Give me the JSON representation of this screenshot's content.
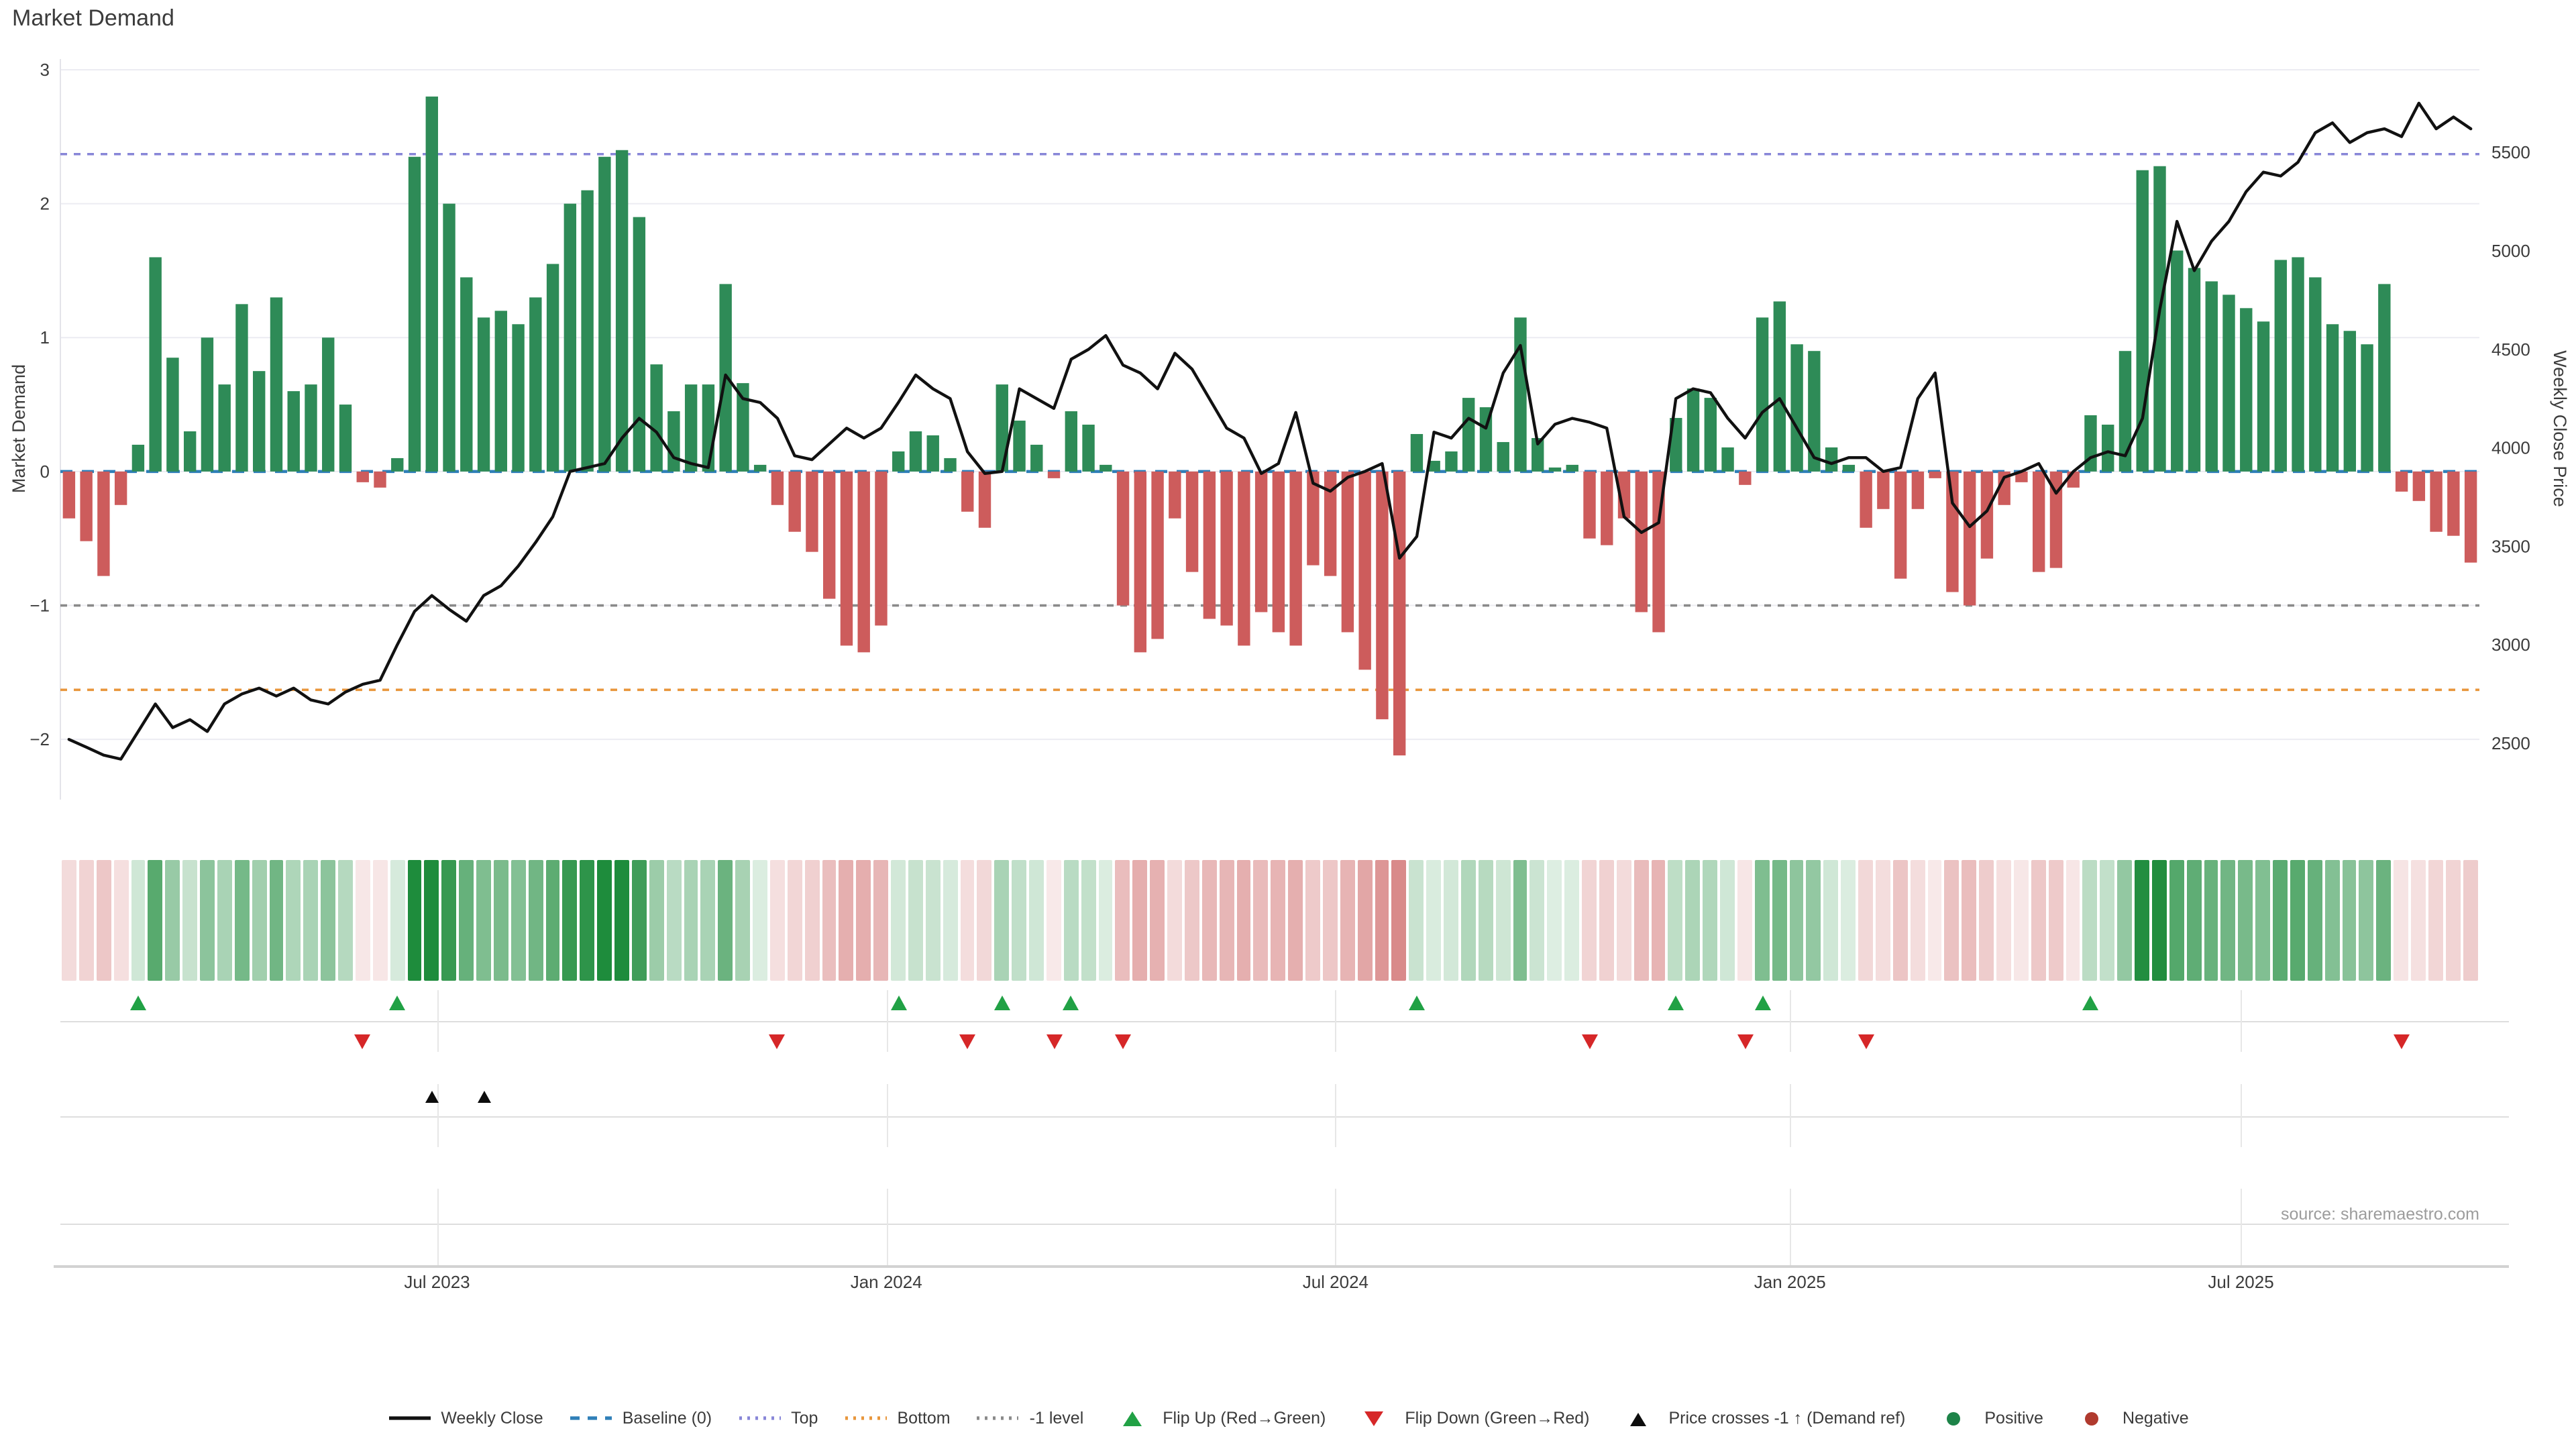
{
  "title": "Market Demand",
  "source_note": "source: sharemaestro.com",
  "axes": {
    "left": {
      "title": "Market Demand",
      "ticks": [
        3,
        2,
        1,
        0,
        -1,
        -2
      ],
      "range": [
        -2.45,
        3.08
      ]
    },
    "right": {
      "title": "Weekly Close Price",
      "ticks": [
        5500,
        5000,
        4500,
        4000,
        3500,
        3000,
        2500
      ],
      "range": [
        2214,
        5974
      ]
    },
    "x": {
      "tick_labels": [
        "Jul 2023",
        "Jan 2024",
        "Jul 2024",
        "Jan 2025",
        "Jul 2025"
      ],
      "tick_weeks": [
        21.3,
        47.3,
        73.3,
        99.6,
        125.7
      ]
    }
  },
  "colors": {
    "bar_positive": "#2E8B57",
    "bar_negative": "#CD5C5C",
    "price_line": "#111111",
    "baseline": "#2f7fb8",
    "top_line": "#8886d8",
    "bottom_line": "#e8963c",
    "minus1_line": "#8a8a8a",
    "flip_up": "#21a145",
    "flip_down": "#d62728",
    "price_cross": "#0d0d0d",
    "positive_dot": "#1d8348",
    "negative_dot": "#b03a2e",
    "grid": "#ececf2"
  },
  "chart_data": {
    "type": "combo",
    "x_unit": "week",
    "weeks_count": 140,
    "title": "Market Demand",
    "ylabel_left": "Market Demand",
    "ylabel_right": "Weekly Close Price",
    "ylim_left": [
      -2.45,
      3.08
    ],
    "ylim_right": [
      2214,
      5974
    ],
    "thresholds": {
      "baseline": 0,
      "top": 2.37,
      "bottom": -1.63,
      "minus1": -1.0
    },
    "series": [
      {
        "name": "Market Demand",
        "type": "bar",
        "axis": "left",
        "values": [
          -0.35,
          -0.52,
          -0.78,
          -0.25,
          0.2,
          1.6,
          0.85,
          0.3,
          1.0,
          0.65,
          1.25,
          0.75,
          1.3,
          0.6,
          0.65,
          1.0,
          0.5,
          -0.08,
          -0.12,
          0.1,
          2.35,
          2.8,
          2.0,
          1.45,
          1.15,
          1.2,
          1.1,
          1.3,
          1.55,
          2.0,
          2.1,
          2.35,
          2.4,
          1.9,
          0.8,
          0.45,
          0.65,
          0.65,
          1.4,
          0.66,
          0.05,
          -0.25,
          -0.45,
          -0.6,
          -0.95,
          -1.3,
          -1.35,
          -1.15,
          0.15,
          0.3,
          0.27,
          0.1,
          -0.3,
          -0.42,
          0.65,
          0.38,
          0.2,
          -0.05,
          0.45,
          0.35,
          0.05,
          -1.0,
          -1.35,
          -1.25,
          -0.35,
          -0.75,
          -1.1,
          -1.15,
          -1.3,
          -1.05,
          -1.2,
          -1.3,
          -0.7,
          -0.78,
          -1.2,
          -1.48,
          -1.85,
          -2.12,
          0.28,
          0.08,
          0.15,
          0.55,
          0.48,
          0.22,
          1.15,
          0.25,
          0.03,
          0.05,
          -0.5,
          -0.55,
          -0.35,
          -1.05,
          -1.2,
          0.4,
          0.62,
          0.55,
          0.18,
          -0.1,
          1.15,
          1.27,
          0.95,
          0.9,
          0.18,
          0.05,
          -0.42,
          -0.28,
          -0.8,
          -0.28,
          -0.05,
          -0.9,
          -1.0,
          -0.65,
          -0.25,
          -0.08,
          -0.75,
          -0.72,
          -0.12,
          0.42,
          0.35,
          0.9,
          2.25,
          2.28,
          1.65,
          1.52,
          1.42,
          1.32,
          1.22,
          1.12,
          1.58,
          1.6,
          1.45,
          1.1,
          1.05,
          0.95,
          1.4,
          -0.15,
          -0.22,
          -0.45,
          -0.48,
          -0.68
        ]
      },
      {
        "name": "Weekly Close",
        "type": "line",
        "axis": "right",
        "values": [
          2520,
          2480,
          2440,
          2420,
          2560,
          2700,
          2580,
          2620,
          2560,
          2700,
          2750,
          2780,
          2740,
          2780,
          2720,
          2700,
          2760,
          2800,
          2820,
          3000,
          3170,
          3250,
          3180,
          3120,
          3250,
          3300,
          3400,
          3520,
          3650,
          3880,
          3900,
          3920,
          4050,
          4150,
          4080,
          3950,
          3920,
          3900,
          4370,
          4250,
          4230,
          4150,
          3960,
          3940,
          4020,
          4100,
          4050,
          4100,
          4230,
          4370,
          4300,
          4250,
          3980,
          3870,
          3880,
          4300,
          4250,
          4200,
          4450,
          4500,
          4570,
          4420,
          4380,
          4300,
          4480,
          4400,
          4250,
          4100,
          4050,
          3870,
          3920,
          4180,
          3820,
          3780,
          3850,
          3880,
          3920,
          3440,
          3550,
          4080,
          4050,
          4150,
          4100,
          4380,
          4520,
          4020,
          4120,
          4150,
          4130,
          4100,
          3650,
          3570,
          3620,
          4250,
          4300,
          4280,
          4150,
          4050,
          4180,
          4250,
          4100,
          3950,
          3920,
          3950,
          3950,
          3880,
          3900,
          4250,
          4380,
          3720,
          3600,
          3680,
          3850,
          3880,
          3920,
          3770,
          3880,
          3950,
          3980,
          3960,
          4150,
          4700,
          5150,
          4900,
          5050,
          5150,
          5300,
          5400,
          5380,
          5450,
          5600,
          5650,
          5550,
          5600,
          5620,
          5580,
          5750,
          5620,
          5680,
          5620
        ]
      },
      {
        "name": "Demand heat strip",
        "type": "heatmap",
        "note": "one cell per week, green = positive demand, red = negative demand, intensity = magnitude; uses Market Demand values"
      }
    ],
    "markers": {
      "flip_up_weeks": [
        4,
        19,
        48,
        54,
        58,
        78,
        93,
        98,
        117
      ],
      "flip_down_weeks": [
        17,
        41,
        52,
        57,
        61,
        88,
        97,
        104,
        135
      ],
      "price_cross_weeks": [
        21,
        24
      ]
    },
    "legend_position": "bottom-center",
    "grid": true
  },
  "legend": [
    {
      "label": "Weekly Close",
      "swatch": "line-black"
    },
    {
      "label": "Baseline (0)",
      "swatch": "dash-blue"
    },
    {
      "label": "Top",
      "swatch": "dot-purple"
    },
    {
      "label": "Bottom",
      "swatch": "dot-orange"
    },
    {
      "label": "-1 level",
      "swatch": "dot-gray"
    },
    {
      "label": "Flip Up (Red→Green)",
      "swatch": "tri-up-green"
    },
    {
      "label": "Flip Down (Green→Red)",
      "swatch": "tri-down-red"
    },
    {
      "label": "Price crosses -1 ↑ (Demand ref)",
      "swatch": "tri-up-black"
    },
    {
      "label": "Positive",
      "swatch": "dot-green"
    },
    {
      "label": "Negative",
      "swatch": "dot-red"
    }
  ]
}
